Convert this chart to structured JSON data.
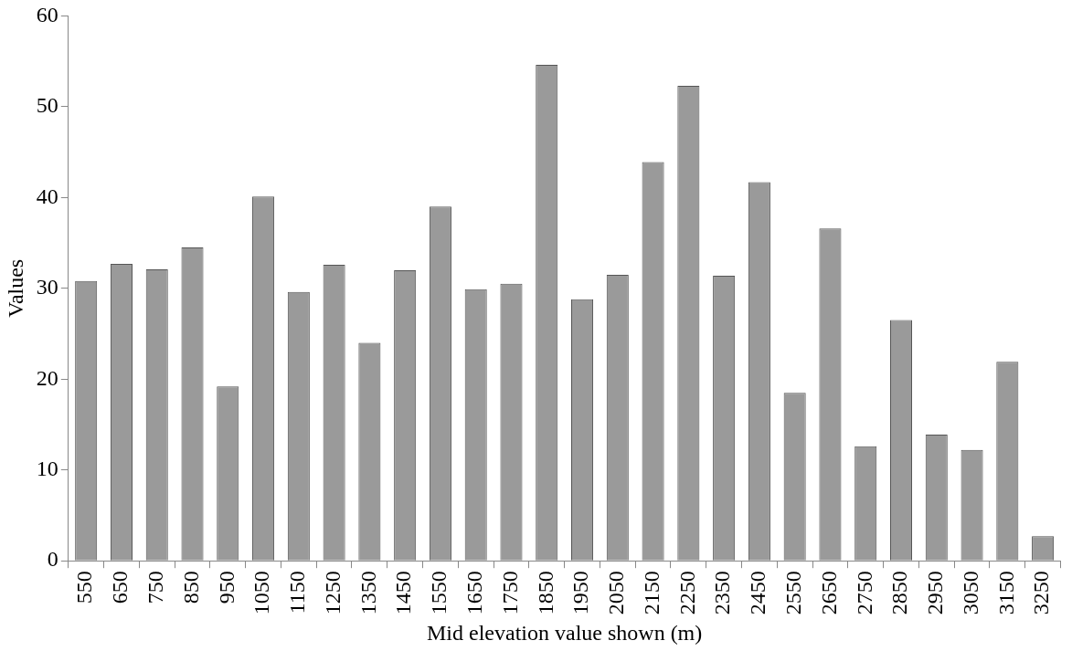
{
  "chart_data": {
    "type": "bar",
    "xlabel": "Mid elevation value shown (m)",
    "ylabel": "Values",
    "categories": [
      "550",
      "650",
      "750",
      "850",
      "950",
      "1050",
      "1150",
      "1250",
      "1350",
      "1450",
      "1550",
      "1650",
      "1750",
      "1850",
      "1950",
      "2050",
      "2150",
      "2250",
      "2350",
      "2450",
      "2550",
      "2650",
      "2750",
      "2850",
      "2950",
      "3050",
      "3150",
      "3250"
    ],
    "values": [
      30.8,
      32.7,
      32.1,
      34.5,
      19.2,
      40.1,
      29.6,
      32.6,
      24.0,
      32.0,
      39.0,
      29.9,
      30.5,
      54.6,
      28.8,
      31.5,
      43.9,
      52.3,
      31.4,
      41.7,
      18.5,
      36.6,
      12.6,
      26.5,
      13.9,
      12.2,
      21.9,
      2.7
    ],
    "color": "#9a9a9a",
    "ylim": [
      0,
      60
    ],
    "yticks": [
      0,
      10,
      20,
      30,
      40,
      50,
      60
    ]
  }
}
